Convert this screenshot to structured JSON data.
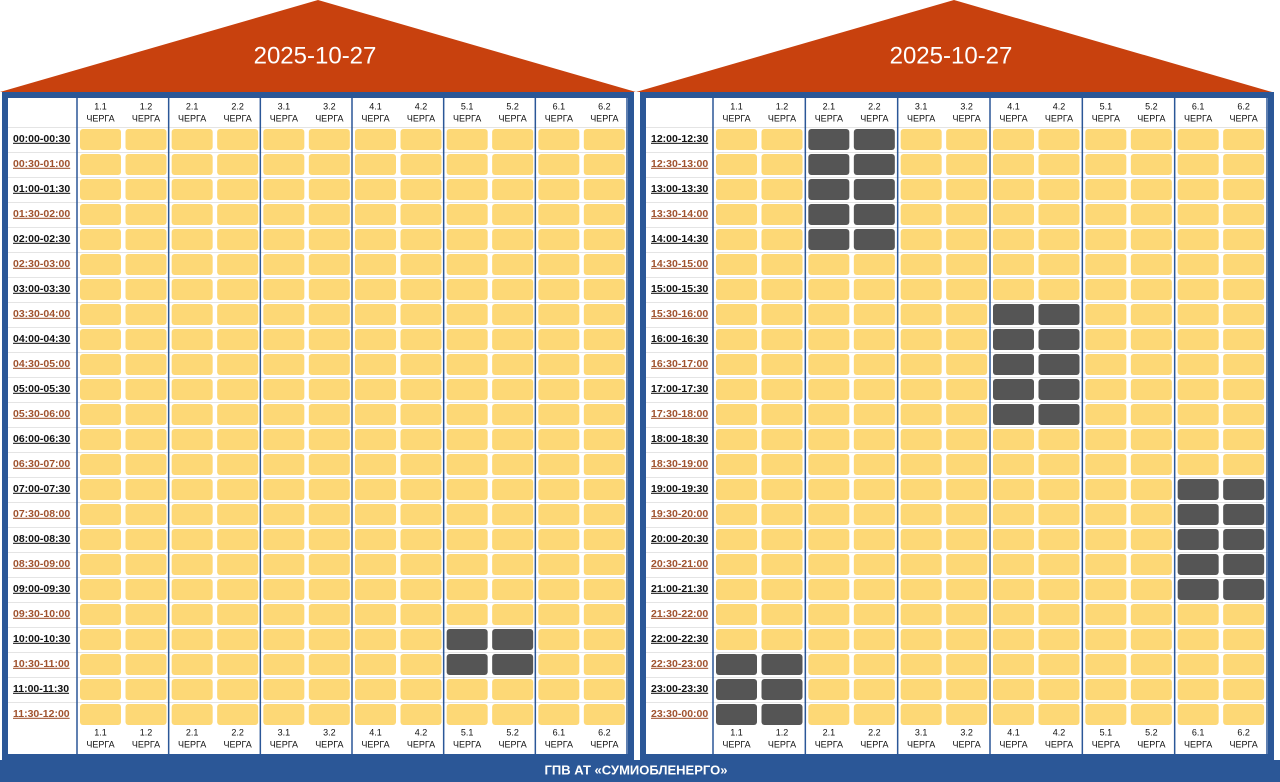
{
  "queue_word": "ЧЕРГА",
  "footer": "ГПВ АТ «СУМИОБЛЕНЕРГО»",
  "panels": [
    {
      "date": "2025-10-27",
      "queues": [
        "1.1",
        "1.2",
        "2.1",
        "2.2",
        "3.1",
        "3.2",
        "4.1",
        "4.2",
        "5.1",
        "5.2",
        "6.1",
        "6.2"
      ],
      "rows": [
        {
          "time": "00:00-00:30",
          "off": [
            false,
            false,
            false,
            false,
            false,
            false,
            false,
            false,
            false,
            false,
            false,
            false
          ]
        },
        {
          "time": "00:30-01:00",
          "off": [
            false,
            false,
            false,
            false,
            false,
            false,
            false,
            false,
            false,
            false,
            false,
            false
          ]
        },
        {
          "time": "01:00-01:30",
          "off": [
            false,
            false,
            false,
            false,
            false,
            false,
            false,
            false,
            false,
            false,
            false,
            false
          ]
        },
        {
          "time": "01:30-02:00",
          "off": [
            false,
            false,
            false,
            false,
            false,
            false,
            false,
            false,
            false,
            false,
            false,
            false
          ]
        },
        {
          "time": "02:00-02:30",
          "off": [
            false,
            false,
            false,
            false,
            false,
            false,
            false,
            false,
            false,
            false,
            false,
            false
          ]
        },
        {
          "time": "02:30-03:00",
          "off": [
            false,
            false,
            false,
            false,
            false,
            false,
            false,
            false,
            false,
            false,
            false,
            false
          ]
        },
        {
          "time": "03:00-03:30",
          "off": [
            false,
            false,
            false,
            false,
            false,
            false,
            false,
            false,
            false,
            false,
            false,
            false
          ]
        },
        {
          "time": "03:30-04:00",
          "off": [
            false,
            false,
            false,
            false,
            false,
            false,
            false,
            false,
            false,
            false,
            false,
            false
          ]
        },
        {
          "time": "04:00-04:30",
          "off": [
            false,
            false,
            false,
            false,
            false,
            false,
            false,
            false,
            false,
            false,
            false,
            false
          ]
        },
        {
          "time": "04:30-05:00",
          "off": [
            false,
            false,
            false,
            false,
            false,
            false,
            false,
            false,
            false,
            false,
            false,
            false
          ]
        },
        {
          "time": "05:00-05:30",
          "off": [
            false,
            false,
            false,
            false,
            false,
            false,
            false,
            false,
            false,
            false,
            false,
            false
          ]
        },
        {
          "time": "05:30-06:00",
          "off": [
            false,
            false,
            false,
            false,
            false,
            false,
            false,
            false,
            false,
            false,
            false,
            false
          ]
        },
        {
          "time": "06:00-06:30",
          "off": [
            false,
            false,
            false,
            false,
            false,
            false,
            false,
            false,
            false,
            false,
            false,
            false
          ]
        },
        {
          "time": "06:30-07:00",
          "off": [
            false,
            false,
            false,
            false,
            false,
            false,
            false,
            false,
            false,
            false,
            false,
            false
          ]
        },
        {
          "time": "07:00-07:30",
          "off": [
            false,
            false,
            false,
            false,
            false,
            false,
            false,
            false,
            false,
            false,
            false,
            false
          ]
        },
        {
          "time": "07:30-08:00",
          "off": [
            false,
            false,
            false,
            false,
            false,
            false,
            false,
            false,
            false,
            false,
            false,
            false
          ]
        },
        {
          "time": "08:00-08:30",
          "off": [
            false,
            false,
            false,
            false,
            false,
            false,
            false,
            false,
            false,
            false,
            false,
            false
          ]
        },
        {
          "time": "08:30-09:00",
          "off": [
            false,
            false,
            false,
            false,
            false,
            false,
            false,
            false,
            false,
            false,
            false,
            false
          ]
        },
        {
          "time": "09:00-09:30",
          "off": [
            false,
            false,
            false,
            false,
            false,
            false,
            false,
            false,
            false,
            false,
            false,
            false
          ]
        },
        {
          "time": "09:30-10:00",
          "off": [
            false,
            false,
            false,
            false,
            false,
            false,
            false,
            false,
            false,
            false,
            false,
            false
          ]
        },
        {
          "time": "10:00-10:30",
          "off": [
            false,
            false,
            false,
            false,
            false,
            false,
            false,
            false,
            true,
            true,
            false,
            false
          ]
        },
        {
          "time": "10:30-11:00",
          "off": [
            false,
            false,
            false,
            false,
            false,
            false,
            false,
            false,
            true,
            true,
            false,
            false
          ]
        },
        {
          "time": "11:00-11:30",
          "off": [
            false,
            false,
            false,
            false,
            false,
            false,
            false,
            false,
            false,
            false,
            false,
            false
          ]
        },
        {
          "time": "11:30-12:00",
          "off": [
            false,
            false,
            false,
            false,
            false,
            false,
            false,
            false,
            false,
            false,
            false,
            false
          ]
        }
      ]
    },
    {
      "date": "2025-10-27",
      "queues": [
        "1.1",
        "1.2",
        "2.1",
        "2.2",
        "3.1",
        "3.2",
        "4.1",
        "4.2",
        "5.1",
        "5.2",
        "6.1",
        "6.2"
      ],
      "rows": [
        {
          "time": "12:00-12:30",
          "off": [
            false,
            false,
            true,
            true,
            false,
            false,
            false,
            false,
            false,
            false,
            false,
            false
          ]
        },
        {
          "time": "12:30-13:00",
          "off": [
            false,
            false,
            true,
            true,
            false,
            false,
            false,
            false,
            false,
            false,
            false,
            false
          ]
        },
        {
          "time": "13:00-13:30",
          "off": [
            false,
            false,
            true,
            true,
            false,
            false,
            false,
            false,
            false,
            false,
            false,
            false
          ]
        },
        {
          "time": "13:30-14:00",
          "off": [
            false,
            false,
            true,
            true,
            false,
            false,
            false,
            false,
            false,
            false,
            false,
            false
          ]
        },
        {
          "time": "14:00-14:30",
          "off": [
            false,
            false,
            true,
            true,
            false,
            false,
            false,
            false,
            false,
            false,
            false,
            false
          ]
        },
        {
          "time": "14:30-15:00",
          "off": [
            false,
            false,
            false,
            false,
            false,
            false,
            false,
            false,
            false,
            false,
            false,
            false
          ]
        },
        {
          "time": "15:00-15:30",
          "off": [
            false,
            false,
            false,
            false,
            false,
            false,
            false,
            false,
            false,
            false,
            false,
            false
          ]
        },
        {
          "time": "15:30-16:00",
          "off": [
            false,
            false,
            false,
            false,
            false,
            false,
            true,
            true,
            false,
            false,
            false,
            false
          ]
        },
        {
          "time": "16:00-16:30",
          "off": [
            false,
            false,
            false,
            false,
            false,
            false,
            true,
            true,
            false,
            false,
            false,
            false
          ]
        },
        {
          "time": "16:30-17:00",
          "off": [
            false,
            false,
            false,
            false,
            false,
            false,
            true,
            true,
            false,
            false,
            false,
            false
          ]
        },
        {
          "time": "17:00-17:30",
          "off": [
            false,
            false,
            false,
            false,
            false,
            false,
            true,
            true,
            false,
            false,
            false,
            false
          ]
        },
        {
          "time": "17:30-18:00",
          "off": [
            false,
            false,
            false,
            false,
            false,
            false,
            true,
            true,
            false,
            false,
            false,
            false
          ]
        },
        {
          "time": "18:00-18:30",
          "off": [
            false,
            false,
            false,
            false,
            false,
            false,
            false,
            false,
            false,
            false,
            false,
            false
          ]
        },
        {
          "time": "18:30-19:00",
          "off": [
            false,
            false,
            false,
            false,
            false,
            false,
            false,
            false,
            false,
            false,
            false,
            false
          ]
        },
        {
          "time": "19:00-19:30",
          "off": [
            false,
            false,
            false,
            false,
            false,
            false,
            false,
            false,
            false,
            false,
            true,
            true
          ]
        },
        {
          "time": "19:30-20:00",
          "off": [
            false,
            false,
            false,
            false,
            false,
            false,
            false,
            false,
            false,
            false,
            true,
            true
          ]
        },
        {
          "time": "20:00-20:30",
          "off": [
            false,
            false,
            false,
            false,
            false,
            false,
            false,
            false,
            false,
            false,
            true,
            true
          ]
        },
        {
          "time": "20:30-21:00",
          "off": [
            false,
            false,
            false,
            false,
            false,
            false,
            false,
            false,
            false,
            false,
            true,
            true
          ]
        },
        {
          "time": "21:00-21:30",
          "off": [
            false,
            false,
            false,
            false,
            false,
            false,
            false,
            false,
            false,
            false,
            true,
            true
          ]
        },
        {
          "time": "21:30-22:00",
          "off": [
            false,
            false,
            false,
            false,
            false,
            false,
            false,
            false,
            false,
            false,
            false,
            false
          ]
        },
        {
          "time": "22:00-22:30",
          "off": [
            false,
            false,
            false,
            false,
            false,
            false,
            false,
            false,
            false,
            false,
            false,
            false
          ]
        },
        {
          "time": "22:30-23:00",
          "off": [
            true,
            true,
            false,
            false,
            false,
            false,
            false,
            false,
            false,
            false,
            false,
            false
          ]
        },
        {
          "time": "23:00-23:30",
          "off": [
            true,
            true,
            false,
            false,
            false,
            false,
            false,
            false,
            false,
            false,
            false,
            false
          ]
        },
        {
          "time": "23:30-00:00",
          "off": [
            true,
            true,
            false,
            false,
            false,
            false,
            false,
            false,
            false,
            false,
            false,
            false
          ]
        }
      ]
    }
  ]
}
